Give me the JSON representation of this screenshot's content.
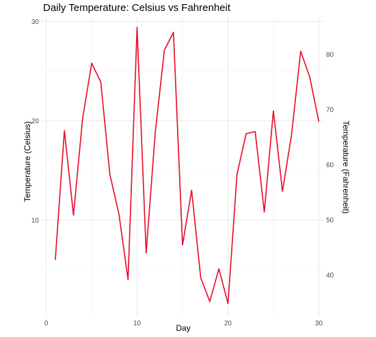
{
  "chart_data": {
    "type": "line",
    "title": "Daily Temperature: Celsius vs Fahrenheit",
    "xlabel": "Day",
    "ylabel": "Temperature (Celsius)",
    "y2label": "Temperature (Fahrenheit)",
    "xlim": [
      -0.5,
      30.5
    ],
    "ylim": [
      0.3,
      30.5
    ],
    "y2lim": [
      32.5,
      86.9
    ],
    "x_ticks": [
      0,
      10,
      20,
      30
    ],
    "y_ticks": [
      10,
      20,
      30
    ],
    "y2_ticks": [
      40,
      50,
      60,
      70,
      80
    ],
    "grid": true,
    "line_color": "#e8112d",
    "series": [
      {
        "x": [
          1,
          2,
          3,
          4,
          5,
          6,
          7,
          8,
          9,
          10,
          11,
          12,
          13,
          14,
          15,
          16,
          17,
          18,
          19,
          20,
          21,
          22,
          23,
          24,
          25,
          26,
          27,
          28,
          29,
          30
        ],
        "values": [
          6.0,
          19.0,
          10.5,
          20.2,
          25.8,
          23.9,
          14.6,
          10.6,
          4.0,
          29.4,
          6.7,
          18.8,
          27.1,
          28.9,
          7.5,
          13.0,
          4.2,
          1.8,
          5.1,
          1.6,
          14.6,
          18.7,
          18.9,
          10.8,
          21.0,
          12.9,
          18.6,
          27.0,
          24.4,
          19.9
        ]
      }
    ]
  }
}
